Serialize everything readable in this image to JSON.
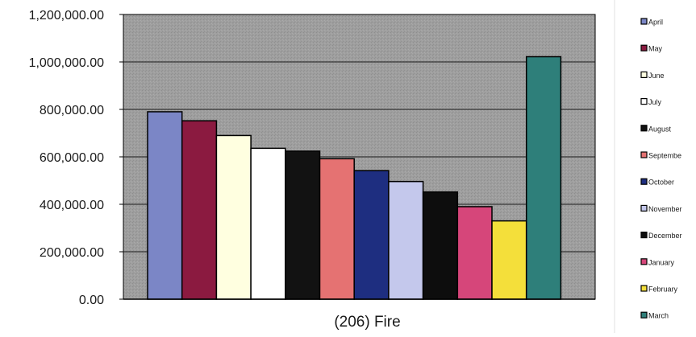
{
  "chart_data": {
    "type": "bar",
    "categories": [
      "(206) Fire"
    ],
    "xlabel": "(206) Fire",
    "ylabel": "",
    "title": "",
    "ylim": [
      0,
      1200000
    ],
    "y_ticks": [
      "0.00",
      "200,000.00",
      "400,000.00",
      "600,000.00",
      "800,000.00",
      "1,000,000.00",
      "1,200,000.00"
    ],
    "y_tick_values": [
      0,
      200000,
      400000,
      600000,
      800000,
      1000000,
      1200000
    ],
    "grid": true,
    "legend_position": "right",
    "series": [
      {
        "name": "April",
        "values": [
          790000
        ],
        "color": "#7B86C6"
      },
      {
        "name": "May",
        "values": [
          752000
        ],
        "color": "#8B1A40"
      },
      {
        "name": "June",
        "values": [
          690000
        ],
        "color": "#FFFFE0"
      },
      {
        "name": "July",
        "values": [
          636000
        ],
        "color": "#FFFFFF"
      },
      {
        "name": "August",
        "values": [
          624000
        ],
        "color": "#121212"
      },
      {
        "name": "September",
        "values": [
          592000
        ],
        "color": "#E57272"
      },
      {
        "name": "October",
        "values": [
          542000
        ],
        "color": "#1E2E80"
      },
      {
        "name": "November",
        "values": [
          496000
        ],
        "color": "#C4C8EC"
      },
      {
        "name": "December",
        "values": [
          452000
        ],
        "color": "#0D0D0D"
      },
      {
        "name": "January",
        "values": [
          390000
        ],
        "color": "#D6467A"
      },
      {
        "name": "February",
        "values": [
          330000
        ],
        "color": "#F4DF3A"
      },
      {
        "name": "March",
        "values": [
          1022000
        ],
        "color": "#2E7F7A"
      }
    ],
    "legend_labels": [
      "April",
      "May",
      "June",
      "July",
      "August",
      "Septembe",
      "October",
      "November",
      "December",
      "January",
      "February",
      "March"
    ],
    "plot_background": "#9C9C9C"
  }
}
